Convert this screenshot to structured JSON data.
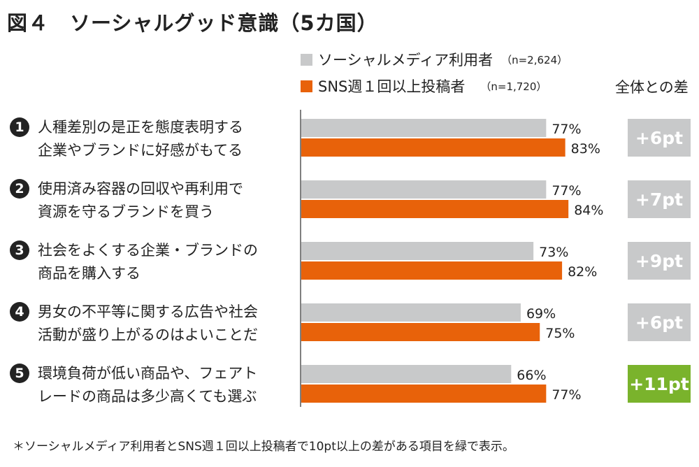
{
  "chart_data": {
    "type": "bar",
    "orientation": "horizontal",
    "title": "図４　ソーシャルグッド意識（5カ国）",
    "categories": [
      {
        "num": "1",
        "lines": [
          "人種差別の是正を態度表明する",
          "企業やブランドに好感がもてる"
        ]
      },
      {
        "num": "2",
        "lines": [
          "使用済み容器の回収や再利用で",
          "資源を守るブランドを買う"
        ]
      },
      {
        "num": "3",
        "lines": [
          "社会をよくする企業・ブランドの",
          "商品を購入する"
        ]
      },
      {
        "num": "4",
        "lines": [
          "男女の不平等に関する広告や社会",
          "活動が盛り上がるのはよいことだ"
        ]
      },
      {
        "num": "5",
        "lines": [
          "環境負荷が低い商品や、フェアト",
          "レードの商品は多少高くても選ぶ"
        ]
      }
    ],
    "series": [
      {
        "name": "ソーシャルメディア利用者",
        "n_label": "（n=2,624）",
        "color": "#c8c9ca",
        "values": [
          77,
          77,
          73,
          69,
          66
        ],
        "labels": [
          "77%",
          "77%",
          "73%",
          "69%",
          "66%"
        ]
      },
      {
        "name": "SNS週１回以上投稿者",
        "n_label": "（n=1,720）",
        "color": "#e8620a",
        "values": [
          83,
          84,
          82,
          75,
          77
        ],
        "labels": [
          "83%",
          "84%",
          "82%",
          "75%",
          "77%"
        ]
      }
    ],
    "diff_header": "全体との差",
    "diffs": [
      "+6pt",
      "+7pt",
      "+9pt",
      "+6pt",
      "+11pt"
    ],
    "diff_highlight": [
      false,
      false,
      false,
      false,
      true
    ],
    "diff_colors": {
      "normal": "#c8c9ca",
      "highlight": "#7ab32c"
    },
    "xlim": [
      0,
      100
    ],
    "grid": false,
    "legend_position": "top",
    "note": "＊ソーシャルメディア利用者とSNS週１回以上投稿者で10pt以上の差がある項目を緑で表示。"
  }
}
